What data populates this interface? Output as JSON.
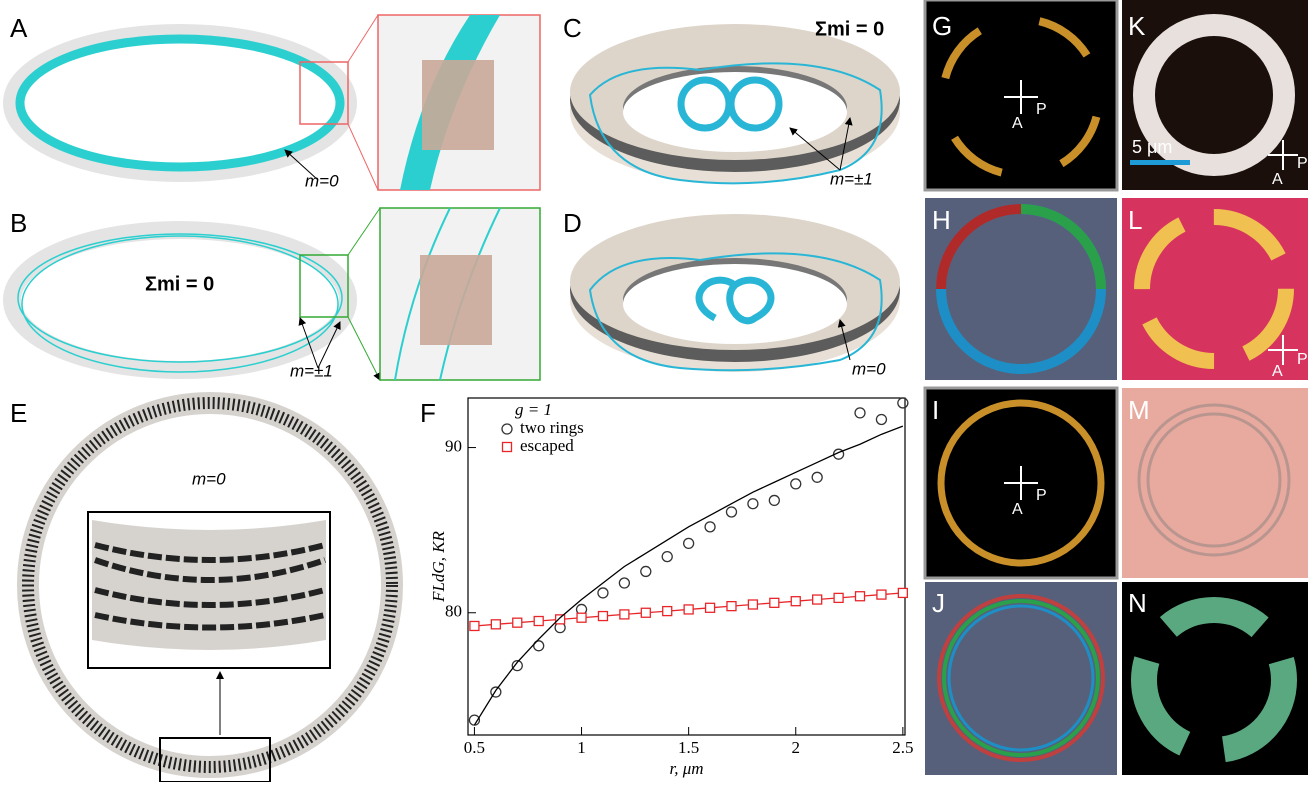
{
  "panels": {
    "labels": [
      "A",
      "B",
      "C",
      "D",
      "E",
      "F",
      "G",
      "H",
      "I",
      "J",
      "K",
      "L",
      "M",
      "N"
    ]
  },
  "annotations": {
    "a_m": "m=0",
    "b_sum": "Σmi = 0",
    "b_m": "m=±1",
    "c_sum": "Σmi = 0",
    "c_m": "m=±1",
    "d_m": "m=0",
    "e_m": "m=0",
    "g_a": "A",
    "g_p": "P",
    "i_a": "A",
    "i_p": "P",
    "k_scale": "5 μm",
    "k_a": "A",
    "k_p": "P",
    "l_a": "A",
    "l_p": "P"
  },
  "chart_data": {
    "type": "line",
    "legend_title": "g = 1",
    "x_label": "r, μm",
    "y_label": "FLdG, KR",
    "x": [
      0.5,
      0.6,
      0.7,
      0.8,
      0.9,
      1.0,
      1.1,
      1.2,
      1.3,
      1.4,
      1.5,
      1.6,
      1.7,
      1.8,
      1.9,
      2.0,
      2.1,
      2.2,
      2.3,
      2.4,
      2.5
    ],
    "series": [
      {
        "name": "two rings",
        "color": "#333333",
        "marker": "circle",
        "line": false,
        "values": [
          73.5,
          75.2,
          76.8,
          78.0,
          79.1,
          80.2,
          81.2,
          81.8,
          82.5,
          83.4,
          84.2,
          85.2,
          86.1,
          86.6,
          86.8,
          87.8,
          88.2,
          89.6,
          92.1,
          91.7,
          92.7
        ]
      },
      {
        "name": "escaped",
        "color": "#e8262a",
        "marker": "square",
        "line": true,
        "values": [
          79.2,
          79.3,
          79.4,
          79.5,
          79.6,
          79.7,
          79.8,
          79.9,
          80.0,
          80.1,
          80.2,
          80.3,
          80.4,
          80.5,
          80.6,
          80.7,
          80.8,
          80.9,
          81.0,
          81.1,
          81.2
        ]
      },
      {
        "color": "#000000",
        "marker": "none",
        "line": true,
        "values": [
          73.2,
          75.3,
          77.0,
          78.4,
          79.7,
          80.8,
          81.8,
          82.8,
          83.6,
          84.4,
          85.2,
          85.9,
          86.6,
          87.3,
          87.9,
          88.5,
          89.1,
          89.7,
          90.2,
          90.8,
          91.3
        ]
      }
    ],
    "xlim": [
      0.47,
      2.51
    ],
    "ylim": [
      72.6,
      93.0
    ],
    "xticks": [
      0.5,
      1,
      1.5,
      2,
      2.5
    ],
    "yticks": [
      80,
      90
    ]
  }
}
